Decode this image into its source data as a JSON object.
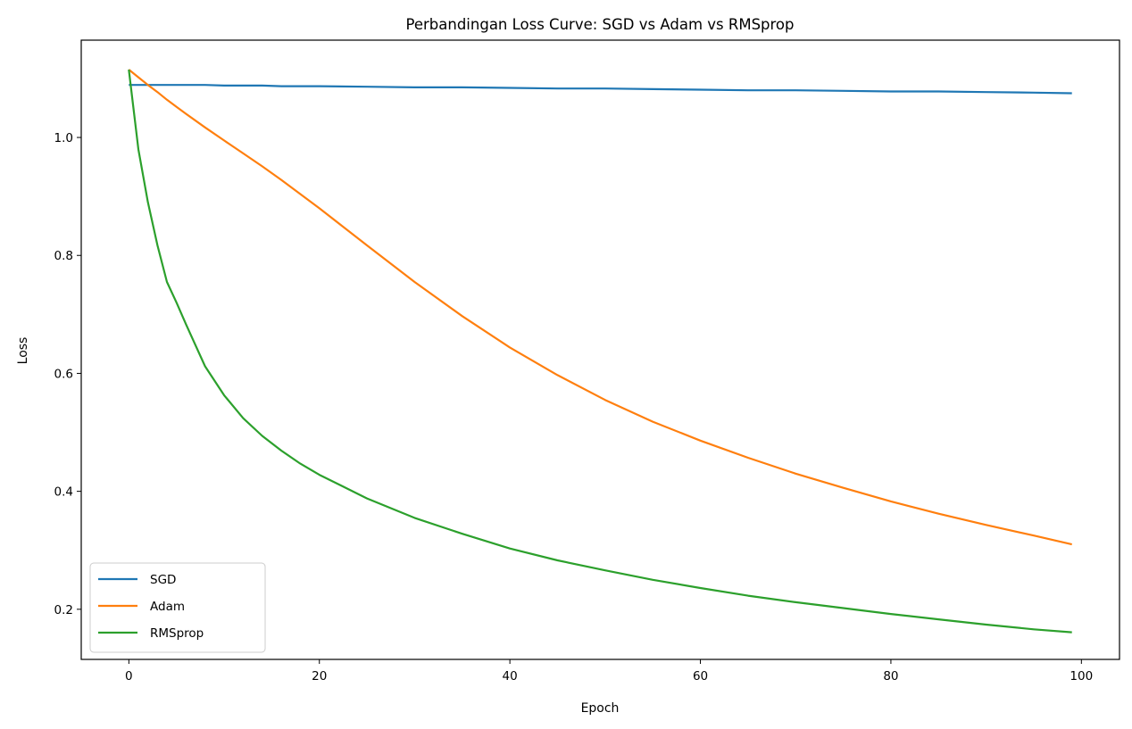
{
  "chart_data": {
    "type": "line",
    "title": "Perbandingan Loss Curve: SGD vs Adam vs RMSprop",
    "xlabel": "Epoch",
    "ylabel": "Loss",
    "xlim": [
      -5,
      104
    ],
    "ylim": [
      0.115,
      1.165
    ],
    "xticks": [
      0,
      20,
      40,
      60,
      80,
      100
    ],
    "yticks": [
      0.2,
      0.4,
      0.6,
      0.8,
      1.0
    ],
    "xtick_labels": [
      "0",
      "20",
      "40",
      "60",
      "80",
      "100"
    ],
    "ytick_labels": [
      "0.2",
      "0.4",
      "0.6",
      "0.8",
      "1.0"
    ],
    "grid": false,
    "legend_position": "lower-left",
    "x": [
      0,
      1,
      2,
      3,
      4,
      5,
      6,
      8,
      10,
      12,
      14,
      16,
      18,
      20,
      25,
      30,
      35,
      40,
      45,
      50,
      55,
      60,
      65,
      70,
      75,
      80,
      85,
      90,
      95,
      99
    ],
    "series": [
      {
        "name": "SGD",
        "color": "#1f77b4",
        "values": [
          1.089,
          1.089,
          1.089,
          1.089,
          1.089,
          1.089,
          1.089,
          1.089,
          1.088,
          1.088,
          1.088,
          1.087,
          1.087,
          1.087,
          1.086,
          1.085,
          1.085,
          1.084,
          1.083,
          1.083,
          1.082,
          1.081,
          1.08,
          1.08,
          1.079,
          1.078,
          1.078,
          1.077,
          1.076,
          1.075
        ]
      },
      {
        "name": "Adam",
        "color": "#ff7f0e",
        "values": [
          1.115,
          1.102,
          1.089,
          1.077,
          1.064,
          1.052,
          1.04,
          1.017,
          0.995,
          0.973,
          0.951,
          0.928,
          0.904,
          0.88,
          0.817,
          0.755,
          0.697,
          0.644,
          0.597,
          0.555,
          0.518,
          0.486,
          0.457,
          0.43,
          0.406,
          0.383,
          0.362,
          0.343,
          0.325,
          0.31
        ]
      },
      {
        "name": "RMSprop",
        "color": "#2ca02c",
        "values": [
          1.115,
          0.98,
          0.89,
          0.817,
          0.755,
          0.72,
          0.683,
          0.612,
          0.563,
          0.524,
          0.494,
          0.469,
          0.447,
          0.428,
          0.388,
          0.355,
          0.328,
          0.303,
          0.283,
          0.266,
          0.25,
          0.236,
          0.223,
          0.212,
          0.202,
          0.192,
          0.183,
          0.174,
          0.166,
          0.161
        ]
      }
    ]
  }
}
